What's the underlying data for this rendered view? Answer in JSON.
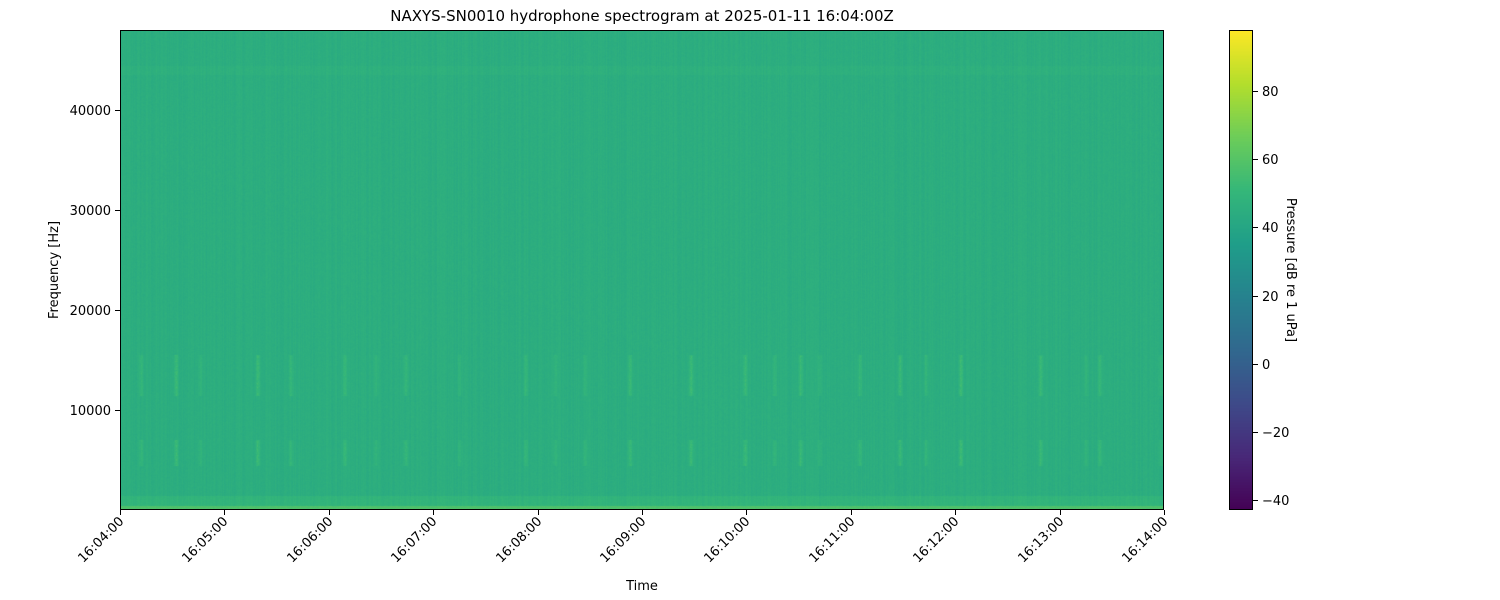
{
  "chart_data": {
    "type": "heatmap",
    "title": "NAXYS-SN0010 hydrophone spectrogram at 2025-01-11 16:04:00Z",
    "xlabel": "Time",
    "ylabel": "Frequency [Hz]",
    "xlim": [
      "16:04:00",
      "16:14:00"
    ],
    "ylim": [
      0,
      48000
    ],
    "xticks": [
      "16:04:00",
      "16:05:00",
      "16:06:00",
      "16:07:00",
      "16:08:00",
      "16:09:00",
      "16:10:00",
      "16:11:00",
      "16:12:00",
      "16:13:00",
      "16:14:00"
    ],
    "yticks": [
      10000,
      20000,
      30000,
      40000
    ],
    "colorbar": {
      "label": "Pressure [dB re 1 uPa]",
      "colormap": "viridis",
      "range": [
        -43,
        98
      ],
      "ticks": [
        -40,
        -20,
        0,
        20,
        40,
        60,
        80
      ]
    },
    "background_level_db": 45,
    "low_frequency_band": {
      "max_hz": 500,
      "level_db": 58
    },
    "transient_bands_hz": [
      [
        4500,
        7000
      ],
      [
        11500,
        15500
      ]
    ],
    "transient_times": [
      "16:04:12",
      "16:04:32",
      "16:04:46",
      "16:05:19",
      "16:05:38",
      "16:06:09",
      "16:06:27",
      "16:06:44",
      "16:07:15",
      "16:07:53",
      "16:08:10",
      "16:08:27",
      "16:08:53",
      "16:09:28",
      "16:09:59",
      "16:10:16",
      "16:10:31",
      "16:10:42",
      "16:11:05",
      "16:11:28",
      "16:11:43",
      "16:12:03",
      "16:12:49",
      "16:13:15",
      "16:13:23",
      "16:13:58"
    ],
    "grid": false
  }
}
